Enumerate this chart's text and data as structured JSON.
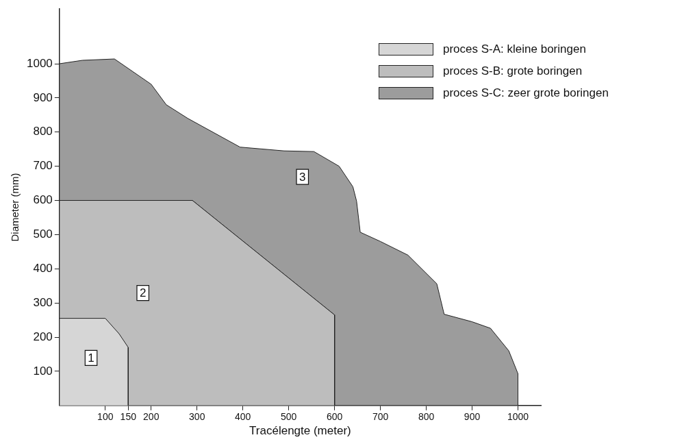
{
  "chart_data": {
    "type": "area",
    "xlabel": "Tracélengte (meter)",
    "ylabel": "Diameter (mm)",
    "xlim": [
      0,
      1050
    ],
    "ylim": [
      0,
      1160
    ],
    "xticks": [
      100,
      {
        "value": 150,
        "label": "150"
      },
      200,
      300,
      400,
      500,
      600,
      700,
      800,
      900,
      1000
    ],
    "yticks": [
      100,
      200,
      300,
      400,
      500,
      600,
      700,
      800,
      900,
      1000
    ],
    "grid": false,
    "legend": "top right",
    "series": [
      {
        "name": "proces S-C: zeer grote boringen",
        "color": "#9c9c9c",
        "x": [
          0,
          0,
          50,
          120,
          200,
          233,
          280,
          394,
          490,
          555,
          610,
          640,
          648,
          656,
          700,
          760,
          823,
          839,
          900,
          940,
          980,
          1000,
          1000,
          600,
          600,
          290
        ],
        "values": [
          600,
          1000,
          1010,
          1014,
          940,
          880,
          840,
          756,
          745,
          743,
          700,
          640,
          598,
          507,
          480,
          440,
          356,
          267,
          245,
          226,
          160,
          93,
          0,
          0,
          265,
          600
        ]
      },
      {
        "name": "proces S-B: grote boringen",
        "color": "#bdbdbd",
        "x": [
          0,
          0,
          290,
          600,
          600
        ],
        "values": [
          0,
          600,
          600,
          265,
          0
        ]
      },
      {
        "name": "proces S-A: kleine boringen",
        "color": "#d6d6d6",
        "x": [
          0,
          0,
          100,
          130,
          150,
          150
        ],
        "values": [
          0,
          255,
          255,
          210,
          170,
          0
        ]
      }
    ],
    "annotations": [
      {
        "text": "1",
        "x": 69,
        "y": 139
      },
      {
        "text": "2",
        "x": 182,
        "y": 329
      },
      {
        "text": "3",
        "x": 530,
        "y": 669
      }
    ]
  }
}
